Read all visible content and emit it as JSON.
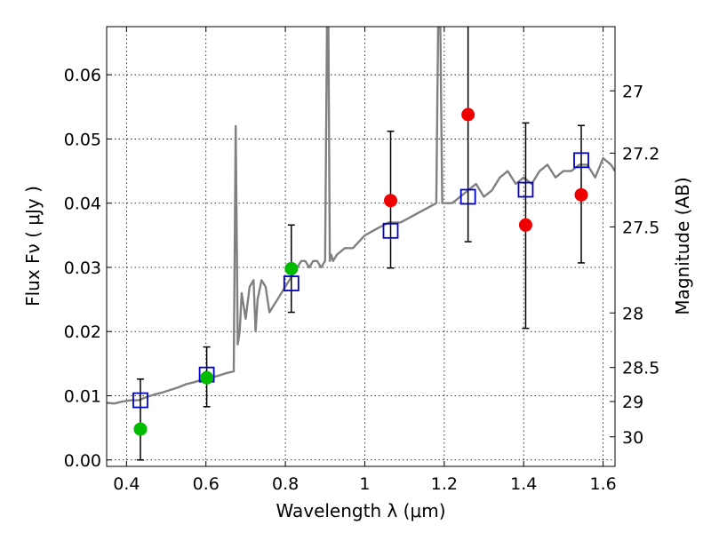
{
  "chart_data": {
    "type": "scatter",
    "xlabel": "Wavelength  λ (μm)",
    "ylabel": "Flux  Fν  ( μJy )",
    "ylabel_right": "Magnitude (AB)",
    "xlim": [
      0.35,
      1.63
    ],
    "ylim": [
      -0.001,
      0.0675
    ],
    "grid": true,
    "x_ticks": [
      0.4,
      0.6,
      0.8,
      1.0,
      1.2,
      1.4,
      1.6
    ],
    "x_tick_labels": [
      "0.4",
      "0.6",
      "0.8",
      "1",
      "1.2",
      "1.4",
      "1.6"
    ],
    "y_ticks": [
      0.0,
      0.01,
      0.02,
      0.03,
      0.04,
      0.05,
      0.06
    ],
    "y_tick_labels": [
      "0.00",
      "0.01",
      "0.02",
      "0.03",
      "0.04",
      "0.05",
      "0.06"
    ],
    "right_ticks": [
      {
        "label": "27",
        "flux": 0.0575
      },
      {
        "label": "27.2",
        "flux": 0.0478
      },
      {
        "label": "27.5",
        "flux": 0.0363
      },
      {
        "label": "28",
        "flux": 0.0229
      },
      {
        "label": "28.5",
        "flux": 0.0144
      },
      {
        "label": "29",
        "flux": 0.0091
      },
      {
        "label": "30",
        "flux": 0.0036
      }
    ],
    "colors": {
      "model": "#808080",
      "model_points": "#0000cc",
      "optical_detections": "#00bb00",
      "nir_detections": "#ee0000",
      "errorbars": "#000000"
    },
    "series": [
      {
        "kind": "model_spectrum",
        "x": [
          0.35,
          0.37,
          0.39,
          0.41,
          0.43,
          0.45,
          0.47,
          0.49,
          0.51,
          0.53,
          0.55,
          0.57,
          0.59,
          0.61,
          0.63,
          0.65,
          0.67,
          0.675,
          0.68,
          0.685,
          0.69,
          0.7,
          0.71,
          0.72,
          0.725,
          0.73,
          0.74,
          0.75,
          0.76,
          0.77,
          0.78,
          0.79,
          0.8,
          0.81,
          0.82,
          0.83,
          0.84,
          0.85,
          0.86,
          0.87,
          0.88,
          0.89,
          0.9,
          0.905,
          0.908,
          0.912,
          0.915,
          0.92,
          0.93,
          0.95,
          0.97,
          1.0,
          1.03,
          1.06,
          1.09,
          1.12,
          1.15,
          1.18,
          1.185,
          1.19,
          1.195,
          1.2,
          1.22,
          1.24,
          1.26,
          1.28,
          1.3,
          1.32,
          1.34,
          1.36,
          1.38,
          1.4,
          1.42,
          1.44,
          1.46,
          1.48,
          1.5,
          1.52,
          1.54,
          1.56,
          1.58,
          1.6,
          1.62,
          1.63
        ],
        "y": [
          0.0089,
          0.0088,
          0.0091,
          0.0093,
          0.0093,
          0.0098,
          0.0102,
          0.0105,
          0.0109,
          0.0113,
          0.0118,
          0.0121,
          0.0125,
          0.0128,
          0.0131,
          0.0135,
          0.0138,
          0.052,
          0.018,
          0.02,
          0.026,
          0.022,
          0.027,
          0.028,
          0.02,
          0.025,
          0.028,
          0.027,
          0.023,
          0.024,
          0.025,
          0.026,
          0.027,
          0.028,
          0.029,
          0.03,
          0.031,
          0.031,
          0.03,
          0.031,
          0.031,
          0.03,
          0.031,
          0.069,
          0.07,
          0.031,
          0.032,
          0.031,
          0.032,
          0.033,
          0.033,
          0.035,
          0.036,
          0.037,
          0.037,
          0.038,
          0.039,
          0.04,
          0.069,
          0.068,
          0.04,
          0.04,
          0.04,
          0.041,
          0.042,
          0.043,
          0.041,
          0.042,
          0.044,
          0.045,
          0.043,
          0.044,
          0.043,
          0.045,
          0.046,
          0.044,
          0.045,
          0.045,
          0.046,
          0.046,
          0.044,
          0.047,
          0.046,
          0.045
        ]
      },
      {
        "kind": "model_points",
        "marker": "open-square",
        "x": [
          0.435,
          0.602,
          0.815,
          1.065,
          1.26,
          1.405,
          1.545
        ],
        "y": [
          0.0093,
          0.0133,
          0.0275,
          0.0357,
          0.041,
          0.0421,
          0.0467
        ]
      },
      {
        "kind": "optical_detections",
        "marker": "filled-circle",
        "x": [
          0.435,
          0.602,
          0.815
        ],
        "y": [
          0.0048,
          0.0128,
          0.0298
        ],
        "err_low": [
          0.0048,
          0.0045,
          0.0068
        ],
        "err_high": [
          0.0078,
          0.0048,
          0.0068
        ]
      },
      {
        "kind": "nir_detections",
        "marker": "filled-circle",
        "x": [
          1.065,
          1.26,
          1.405,
          1.545
        ],
        "y": [
          0.0404,
          0.0538,
          0.0366,
          0.0413
        ],
        "err_low": [
          0.0105,
          0.0198,
          0.0161,
          0.0106
        ],
        "err_high": [
          0.0108,
          0.0155,
          0.0159,
          0.0108
        ]
      }
    ]
  }
}
